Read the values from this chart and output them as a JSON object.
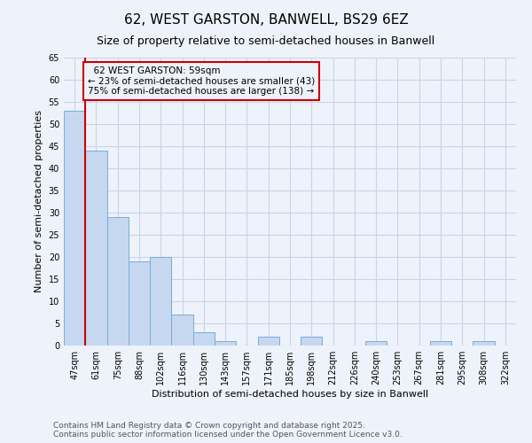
{
  "title_line1": "62, WEST GARSTON, BANWELL, BS29 6EZ",
  "title_line2": "Size of property relative to semi-detached houses in Banwell",
  "xlabel": "Distribution of semi-detached houses by size in Banwell",
  "ylabel": "Number of semi-detached properties",
  "categories": [
    "47sqm",
    "61sqm",
    "75sqm",
    "88sqm",
    "102sqm",
    "116sqm",
    "130sqm",
    "143sqm",
    "157sqm",
    "171sqm",
    "185sqm",
    "198sqm",
    "212sqm",
    "226sqm",
    "240sqm",
    "253sqm",
    "267sqm",
    "281sqm",
    "295sqm",
    "308sqm",
    "322sqm"
  ],
  "values": [
    53,
    44,
    29,
    19,
    20,
    7,
    3,
    1,
    0,
    2,
    0,
    2,
    0,
    0,
    1,
    0,
    0,
    1,
    0,
    1,
    0
  ],
  "bar_color": "#c5d8f0",
  "bar_edge_color": "#7aadd4",
  "grid_color": "#c8d4e8",
  "background_color": "#eef2fa",
  "vline_color": "#cc0000",
  "annotation_box_color": "#cc0000",
  "property_label": "62 WEST GARSTON: 59sqm",
  "pct_smaller": 23,
  "pct_smaller_count": 43,
  "pct_larger": 75,
  "pct_larger_count": 138,
  "ylim": [
    0,
    65
  ],
  "yticks": [
    0,
    5,
    10,
    15,
    20,
    25,
    30,
    35,
    40,
    45,
    50,
    55,
    60,
    65
  ],
  "footer_line1": "Contains HM Land Registry data © Crown copyright and database right 2025.",
  "footer_line2": "Contains public sector information licensed under the Open Government Licence v3.0.",
  "title_fontsize": 11,
  "subtitle_fontsize": 9,
  "axis_label_fontsize": 8,
  "tick_fontsize": 7,
  "annotation_fontsize": 7.5,
  "footer_fontsize": 6.5
}
